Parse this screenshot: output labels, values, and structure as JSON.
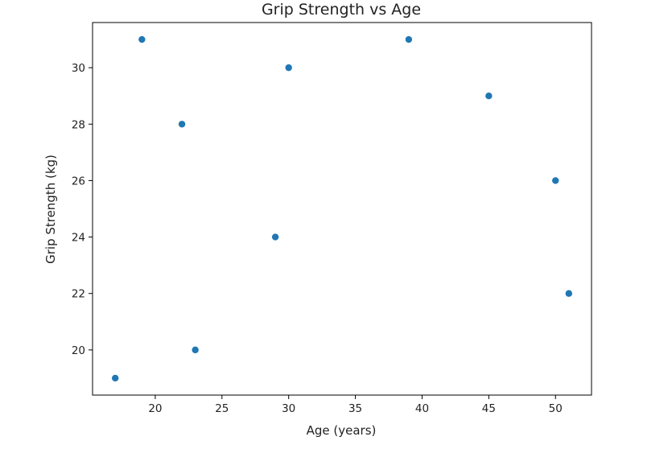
{
  "chart_data": {
    "type": "scatter",
    "title": "Grip Strength vs Age",
    "xlabel": "Age (years)",
    "ylabel": "Grip Strength (kg)",
    "xlim": [
      15.3,
      52.7
    ],
    "ylim": [
      18.4,
      31.6
    ],
    "xticks": [
      20,
      25,
      30,
      35,
      40,
      45,
      50
    ],
    "yticks": [
      20,
      22,
      24,
      26,
      28,
      30
    ],
    "grid": false,
    "color": "#1f77b4",
    "points": [
      {
        "x": 17,
        "y": 19
      },
      {
        "x": 19,
        "y": 31
      },
      {
        "x": 22,
        "y": 28
      },
      {
        "x": 23,
        "y": 20
      },
      {
        "x": 29,
        "y": 24
      },
      {
        "x": 30,
        "y": 30
      },
      {
        "x": 39,
        "y": 31
      },
      {
        "x": 45,
        "y": 29
      },
      {
        "x": 50,
        "y": 26
      },
      {
        "x": 51,
        "y": 22
      }
    ]
  }
}
